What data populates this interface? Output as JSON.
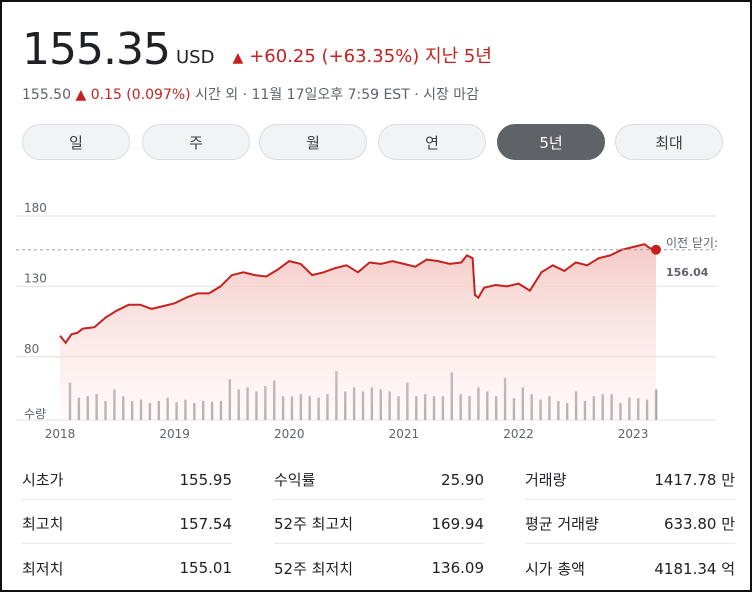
{
  "quote": {
    "price": "155.35",
    "currency": "USD",
    "change": "+60.25 (+63.35%) 지난 5년",
    "change_arrow": "▲"
  },
  "after_hours": {
    "price": "155.50",
    "arrow": "▲",
    "change": "0.15 (0.097%)",
    "label": "시간 외 · 11월 17일오후 7:59 EST · 시장 마감"
  },
  "tabs": [
    {
      "label": "일"
    },
    {
      "label": "주"
    },
    {
      "label": "월"
    },
    {
      "label": "연"
    },
    {
      "label": "5년",
      "active": true
    },
    {
      "label": "최대"
    }
  ],
  "chart_data": {
    "type": "area",
    "ylim": [
      55,
      180
    ],
    "y_ticks": [
      "180",
      "130",
      "80"
    ],
    "volume_label": "수량",
    "x_ticks": [
      "2018",
      "2019",
      "2020",
      "2021",
      "2022",
      "2023"
    ],
    "previous_close": {
      "label": "이전 닫기:",
      "value": "156.04"
    },
    "colors": {
      "line": "#c5221f",
      "fill_top": "#f4c7c3",
      "volume": "#9aa0a6",
      "grid": "#e0e0e0"
    },
    "series": [
      {
        "x": [
          2018.0,
          2018.05,
          2018.1,
          2018.15,
          2018.2,
          2018.3,
          2018.4,
          2018.5,
          2018.6,
          2018.7,
          2018.8,
          2018.9,
          2019.0,
          2019.1,
          2019.2,
          2019.3,
          2019.4,
          2019.5,
          2019.6,
          2019.7,
          2019.8,
          2019.9,
          2020.0,
          2020.05,
          2020.1,
          2020.2,
          2020.3,
          2020.4,
          2020.5,
          2020.6,
          2020.7,
          2020.8,
          2020.9,
          2021.0,
          2021.1,
          2021.2,
          2021.3,
          2021.4,
          2021.5,
          2021.55,
          2021.6,
          2021.62,
          2021.65,
          2021.7,
          2021.8,
          2021.9,
          2022.0,
          2022.1,
          2022.2,
          2022.3,
          2022.4,
          2022.5,
          2022.6,
          2022.7,
          2022.8,
          2022.9,
          2023.0,
          2023.1,
          2023.15,
          2023.2
        ],
        "values": [
          95,
          90,
          96,
          97,
          100,
          101,
          108,
          113,
          117,
          117,
          114,
          116,
          118,
          122,
          125,
          125,
          130,
          138,
          140,
          138,
          137,
          142,
          148,
          147,
          146,
          138,
          140,
          143,
          145,
          140,
          147,
          146,
          148,
          146,
          144,
          149,
          148,
          146,
          147,
          152,
          150,
          124,
          122,
          129,
          131,
          130,
          132,
          127,
          140,
          145,
          141,
          147,
          145,
          150,
          152,
          156,
          158,
          160,
          157,
          156.04
        ]
      }
    ],
    "volumes": [
      0.55,
      0.33,
      0.35,
      0.38,
      0.28,
      0.45,
      0.35,
      0.28,
      0.3,
      0.25,
      0.28,
      0.33,
      0.26,
      0.3,
      0.25,
      0.28,
      0.27,
      0.28,
      0.6,
      0.45,
      0.48,
      0.42,
      0.5,
      0.58,
      0.35,
      0.35,
      0.38,
      0.35,
      0.33,
      0.38,
      0.72,
      0.42,
      0.48,
      0.42,
      0.48,
      0.45,
      0.42,
      0.35,
      0.55,
      0.35,
      0.38,
      0.35,
      0.35,
      0.7,
      0.38,
      0.35,
      0.48,
      0.42,
      0.35,
      0.62,
      0.32,
      0.48,
      0.38,
      0.3,
      0.35,
      0.28,
      0.25,
      0.42,
      0.28,
      0.35,
      0.38,
      0.38,
      0.25,
      0.33,
      0.32,
      0.3,
      0.45
    ]
  },
  "stats": [
    {
      "label": "시초가",
      "value": "155.95"
    },
    {
      "label": "수익률",
      "value": "25.90"
    },
    {
      "label": "거래량",
      "value": "1417.78 만"
    },
    {
      "label": "최고치",
      "value": "157.54"
    },
    {
      "label": "52주 최고치",
      "value": "169.94"
    },
    {
      "label": "평균 거래량",
      "value": "633.80 만"
    },
    {
      "label": "최저치",
      "value": "155.01"
    },
    {
      "label": "52주 최저치",
      "value": "136.09"
    },
    {
      "label": "시가 총액",
      "value": "4181.34 억"
    }
  ]
}
